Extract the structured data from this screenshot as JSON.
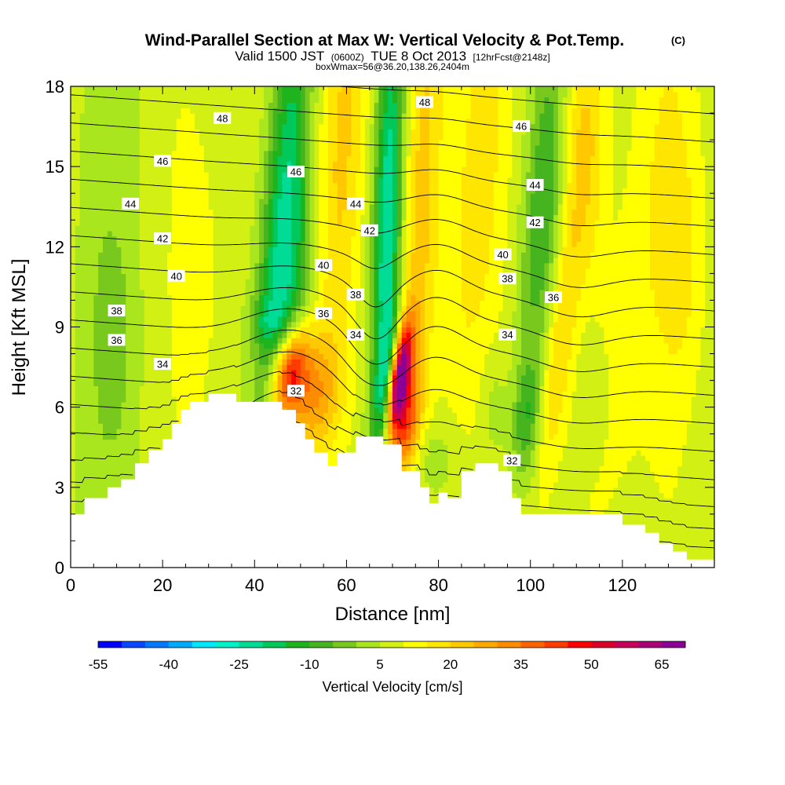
{
  "chart_data": {
    "type": "heatmap",
    "title": "Wind-Parallel Section at Max W: Vertical Velocity & Pot.Temp.",
    "title_mark": "(C)",
    "subtitle_parts": {
      "a": "Valid 1500 JST",
      "b": "(0600Z)",
      "c": "TUE 8 Oct 2013",
      "d": "[12hrFcst@2148z]"
    },
    "subtitle2": "boxWmax=56@36.20,138.26,2404m",
    "xlabel": "Distance [nm]",
    "ylabel": "Height [Kft MSL]",
    "xlim": [
      0,
      140
    ],
    "ylim": [
      0,
      18
    ],
    "x_ticks": [
      "0",
      "20",
      "40",
      "60",
      "80",
      "100",
      "120"
    ],
    "x_tick_values": [
      0,
      20,
      40,
      60,
      80,
      100,
      120
    ],
    "y_ticks": [
      "0",
      "3",
      "6",
      "9",
      "12",
      "15",
      "18"
    ],
    "y_tick_values": [
      0,
      3,
      6,
      9,
      12,
      15,
      18
    ],
    "colorbar": {
      "label": "Vertical Velocity [cm/s]",
      "range": [
        -55,
        70
      ],
      "step": 5,
      "tick_labels": [
        "-55",
        "-40",
        "-25",
        "-10",
        "5",
        "20",
        "35",
        "50",
        "65"
      ],
      "tick_values": [
        -55,
        -40,
        -25,
        -10,
        5,
        20,
        35,
        50,
        65
      ],
      "colors": [
        "#0000ff",
        "#0a46ff",
        "#0078ff",
        "#00aaff",
        "#00e6ff",
        "#00f0c8",
        "#00dc96",
        "#00c85a",
        "#1eb41e",
        "#46b41e",
        "#78c81e",
        "#aae61e",
        "#d2f014",
        "#ffff00",
        "#ffe600",
        "#ffc800",
        "#ffaa00",
        "#ff8c00",
        "#ff6400",
        "#ff3c00",
        "#ff0000",
        "#dc0028",
        "#c8005a",
        "#aa0078",
        "#8c0096"
      ]
    },
    "terrain_profile": [
      [
        0,
        2
      ],
      [
        3,
        2
      ],
      [
        3,
        2.6
      ],
      [
        8,
        2.6
      ],
      [
        8,
        3
      ],
      [
        11,
        3
      ],
      [
        11,
        3.3
      ],
      [
        14,
        3.3
      ],
      [
        14,
        3.9
      ],
      [
        17,
        3.9
      ],
      [
        17,
        4.4
      ],
      [
        20,
        4.4
      ],
      [
        20,
        4.8
      ],
      [
        22,
        4.8
      ],
      [
        22,
        5.4
      ],
      [
        24,
        5.4
      ],
      [
        24,
        5.9
      ],
      [
        26,
        5.9
      ],
      [
        26,
        6.2
      ],
      [
        30,
        6.2
      ],
      [
        30,
        6.5
      ],
      [
        36,
        6.5
      ],
      [
        36,
        6.2
      ],
      [
        46,
        6.2
      ],
      [
        46,
        5.9
      ],
      [
        49,
        5.9
      ],
      [
        49,
        5.4
      ],
      [
        51,
        5.4
      ],
      [
        51,
        4.8
      ],
      [
        53,
        4.8
      ],
      [
        53,
        4.3
      ],
      [
        56,
        4.3
      ],
      [
        56,
        3.8
      ],
      [
        58,
        3.8
      ],
      [
        58,
        4.3
      ],
      [
        62,
        4.3
      ],
      [
        62,
        4.9
      ],
      [
        68,
        4.9
      ],
      [
        68,
        4.6
      ],
      [
        72,
        4.6
      ],
      [
        72,
        3.6
      ],
      [
        76,
        3.6
      ],
      [
        76,
        3
      ],
      [
        78,
        3
      ],
      [
        78,
        2.4
      ],
      [
        80,
        2.4
      ],
      [
        80,
        2.8
      ],
      [
        82,
        2.8
      ],
      [
        82,
        2.6
      ],
      [
        85,
        2.6
      ],
      [
        85,
        3.6
      ],
      [
        88,
        3.6
      ],
      [
        88,
        3.9
      ],
      [
        93,
        3.9
      ],
      [
        93,
        3.6
      ],
      [
        96,
        3.6
      ],
      [
        96,
        2.6
      ],
      [
        98,
        2.6
      ],
      [
        98,
        2
      ],
      [
        120,
        2
      ],
      [
        120,
        1.6
      ],
      [
        125,
        1.6
      ],
      [
        125,
        1.3
      ],
      [
        128,
        1.3
      ],
      [
        128,
        0.9
      ],
      [
        131,
        0.9
      ],
      [
        131,
        0.6
      ],
      [
        134,
        0.6
      ],
      [
        134,
        0.3
      ],
      [
        140,
        0.3
      ]
    ],
    "w_features": [
      {
        "x": 6,
        "z": 12,
        "w": -5,
        "sx": 4,
        "sz": 30,
        "tilt": 0.02
      },
      {
        "x": 9,
        "z": 8.5,
        "w": -8,
        "sx": 3,
        "sz": 3,
        "tilt": 0
      },
      {
        "x": 28,
        "z": 11,
        "w": 6,
        "sx": 4,
        "sz": 5,
        "tilt": 0
      },
      {
        "x": 46,
        "z": 13,
        "w": -25,
        "sx": 3.2,
        "sz": 7,
        "tilt": 0.15
      },
      {
        "x": 50,
        "z": 11,
        "w": -12,
        "sx": 4,
        "sz": 3,
        "tilt": 0.15
      },
      {
        "x": 42,
        "z": 9.3,
        "w": -8,
        "sx": 2.5,
        "sz": 0.6,
        "tilt": 0
      },
      {
        "x": 47.5,
        "z": 7.3,
        "w": 42,
        "sx": 2.7,
        "sz": 1.2,
        "tilt": 0.3
      },
      {
        "x": 52,
        "z": 6.4,
        "w": 18,
        "sx": 4.5,
        "sz": 1.4,
        "tilt": 0.3
      },
      {
        "x": 58,
        "z": 14,
        "w": 14,
        "sx": 4,
        "sz": 8,
        "tilt": 0.15
      },
      {
        "x": 57,
        "z": 8,
        "w": -2,
        "sx": 3,
        "sz": 2.5,
        "tilt": 0
      },
      {
        "x": 69,
        "z": 12.5,
        "w": -32,
        "sx": 2.2,
        "sz": 6.5,
        "tilt": 0.05
      },
      {
        "x": 71.5,
        "z": 7,
        "w": 68,
        "sx": 1.5,
        "sz": 1.4,
        "tilt": 0.25
      },
      {
        "x": 73,
        "z": 5.2,
        "w": 25,
        "sx": 2,
        "sz": 1.2,
        "tilt": 0.25
      },
      {
        "x": 68.5,
        "z": 7,
        "w": -12,
        "sx": 1.5,
        "sz": 1.6,
        "tilt": 0.25
      },
      {
        "x": 76,
        "z": 13,
        "w": 14,
        "sx": 3,
        "sz": 8,
        "tilt": 0.1
      },
      {
        "x": 78,
        "z": 4,
        "w": -8,
        "sx": 4,
        "sz": 1.2,
        "tilt": 0
      },
      {
        "x": 88,
        "z": 14,
        "w": 12,
        "sx": 4,
        "sz": 7,
        "tilt": 0.1
      },
      {
        "x": 103,
        "z": 14,
        "w": -16,
        "sx": 3,
        "sz": 5,
        "tilt": 0.15
      },
      {
        "x": 99,
        "z": 5.5,
        "w": -14,
        "sx": 2,
        "sz": 1.5,
        "tilt": 0.1
      },
      {
        "x": 92,
        "z": 6,
        "w": -6,
        "sx": 2,
        "sz": 1.5,
        "tilt": 0
      },
      {
        "x": 106,
        "z": 8,
        "w": 14,
        "sx": 2.2,
        "sz": 4,
        "tilt": 0.2
      },
      {
        "x": 112,
        "z": 16,
        "w": 12,
        "sx": 4,
        "sz": 3,
        "tilt": 0
      },
      {
        "x": 118,
        "z": 9,
        "w": 8,
        "sx": 5,
        "sz": 5,
        "tilt": 0
      },
      {
        "x": 114,
        "z": 7,
        "w": -8,
        "sx": 2.5,
        "sz": 2,
        "tilt": 0
      },
      {
        "x": 117,
        "z": 14,
        "w": -6,
        "sx": 3,
        "sz": 3,
        "tilt": 0
      },
      {
        "x": 130,
        "z": 14,
        "w": 8,
        "sx": 6,
        "sz": 6,
        "tilt": 0
      },
      {
        "x": 134,
        "z": 11,
        "w": 4,
        "sx": 3,
        "sz": 3,
        "tilt": 0
      }
    ],
    "theta_contours": {
      "min": 30,
      "max": 49,
      "step": 1,
      "labels": [
        {
          "text": "48",
          "x": 33,
          "z": 16.8
        },
        {
          "text": "48",
          "x": 77,
          "z": 17.4
        },
        {
          "text": "46",
          "x": 20,
          "z": 15.2
        },
        {
          "text": "46",
          "x": 49,
          "z": 14.8
        },
        {
          "text": "46",
          "x": 98,
          "z": 16.5
        },
        {
          "text": "44",
          "x": 13,
          "z": 13.6
        },
        {
          "text": "44",
          "x": 62,
          "z": 13.6
        },
        {
          "text": "44",
          "x": 101,
          "z": 14.3
        },
        {
          "text": "42",
          "x": 20,
          "z": 12.3
        },
        {
          "text": "42",
          "x": 65,
          "z": 12.6
        },
        {
          "text": "42",
          "x": 101,
          "z": 12.9
        },
        {
          "text": "40",
          "x": 23,
          "z": 10.9
        },
        {
          "text": "40",
          "x": 55,
          "z": 11.3
        },
        {
          "text": "40",
          "x": 94,
          "z": 11.7
        },
        {
          "text": "38",
          "x": 10,
          "z": 9.6
        },
        {
          "text": "38",
          "x": 62,
          "z": 10.2
        },
        {
          "text": "38",
          "x": 95,
          "z": 10.8
        },
        {
          "text": "36",
          "x": 10,
          "z": 8.5
        },
        {
          "text": "36",
          "x": 55,
          "z": 9.5
        },
        {
          "text": "36",
          "x": 105,
          "z": 10.1
        },
        {
          "text": "34",
          "x": 20,
          "z": 7.6
        },
        {
          "text": "34",
          "x": 62,
          "z": 8.7
        },
        {
          "text": "34",
          "x": 95,
          "z": 8.7
        },
        {
          "text": "32",
          "x": 49,
          "z": 6.6
        },
        {
          "text": "32",
          "x": 96,
          "z": 4
        }
      ]
    }
  }
}
